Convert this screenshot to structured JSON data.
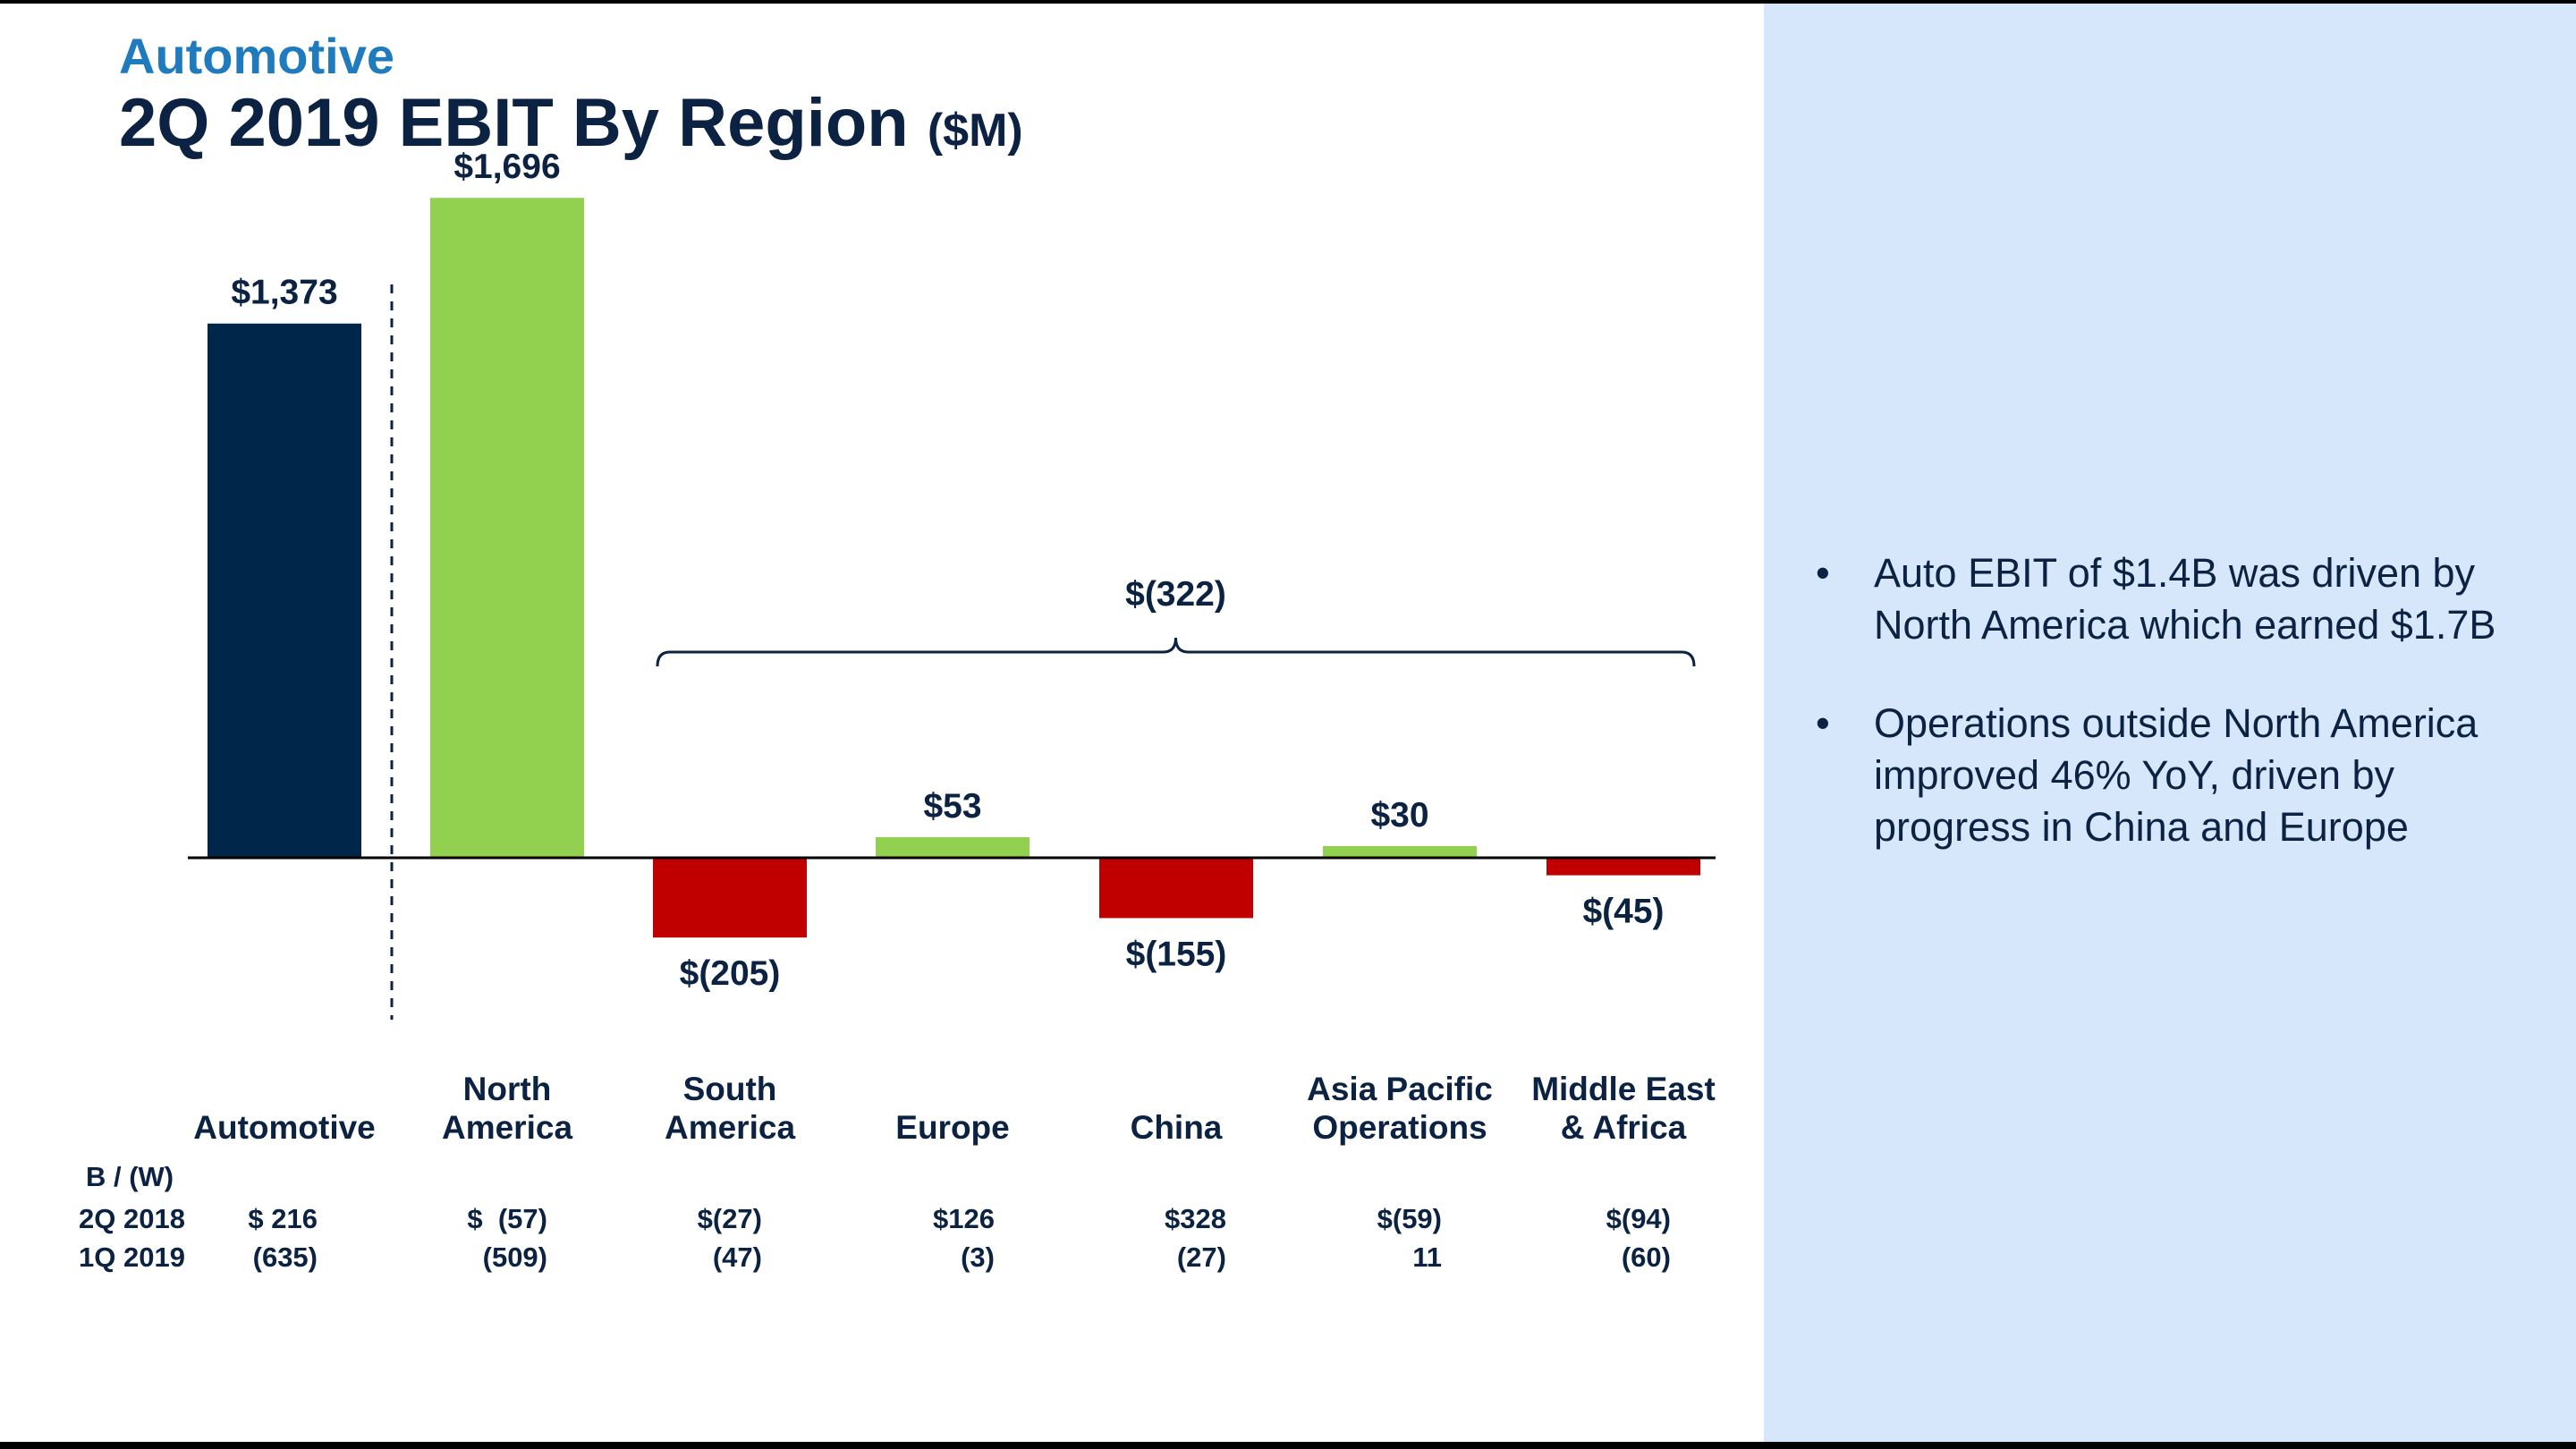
{
  "header": {
    "subtitle": "Automotive",
    "title": "2Q 2019 EBIT By Region",
    "unit": "($M)"
  },
  "colors": {
    "navy": "#002649",
    "green": "#92d050",
    "red": "#c00000",
    "accent": "#1f7bbd",
    "sidebar": "#d6e7fc"
  },
  "chart_data": {
    "type": "bar",
    "title": "2Q 2019 EBIT By Region ($M)",
    "categories": [
      "Automotive",
      "North America",
      "South America",
      "Europe",
      "China",
      "Asia Pacific Operations",
      "Middle East & Africa"
    ],
    "category_lines": [
      [
        "Automotive"
      ],
      [
        "North",
        "America"
      ],
      [
        "South",
        "America"
      ],
      [
        "Europe"
      ],
      [
        "China"
      ],
      [
        "Asia Pacific",
        "Operations"
      ],
      [
        "Middle East",
        "& Africa"
      ]
    ],
    "values": [
      1373,
      1696,
      -205,
      53,
      -155,
      30,
      -45
    ],
    "value_labels": [
      "$1,373",
      "$1,696",
      "$(205)",
      "$53",
      "$(155)",
      "$30",
      "$(45)"
    ],
    "bar_colors": [
      "#002649",
      "#92d050",
      "#c00000",
      "#92d050",
      "#c00000",
      "#92d050",
      "#c00000"
    ],
    "bracket": {
      "label": "$(322)",
      "from_category": 2,
      "to_category": 6,
      "value": -322
    },
    "ylim": [
      -560,
      2050
    ],
    "xlabel": "",
    "ylabel": "",
    "grid": false,
    "legend": "none"
  },
  "table": {
    "header_label": "B / (W)",
    "rows": [
      {
        "label": "2Q 2018",
        "cells": [
          "$ 216",
          "$  (57)",
          "$(27)",
          "$126",
          "$328",
          "$(59)",
          "$(94)"
        ]
      },
      {
        "label": "1Q 2019",
        "cells": [
          "(635)",
          "(509)",
          "(47)",
          "(3)",
          "(27)",
          "11",
          "(60)"
        ]
      }
    ]
  },
  "bullets": [
    "Auto EBIT of $1.4B was driven by North America which earned $1.7B",
    "Operations outside North America improved 46% YoY, driven by progress in China and Europe"
  ],
  "bullet_glyph": "•"
}
